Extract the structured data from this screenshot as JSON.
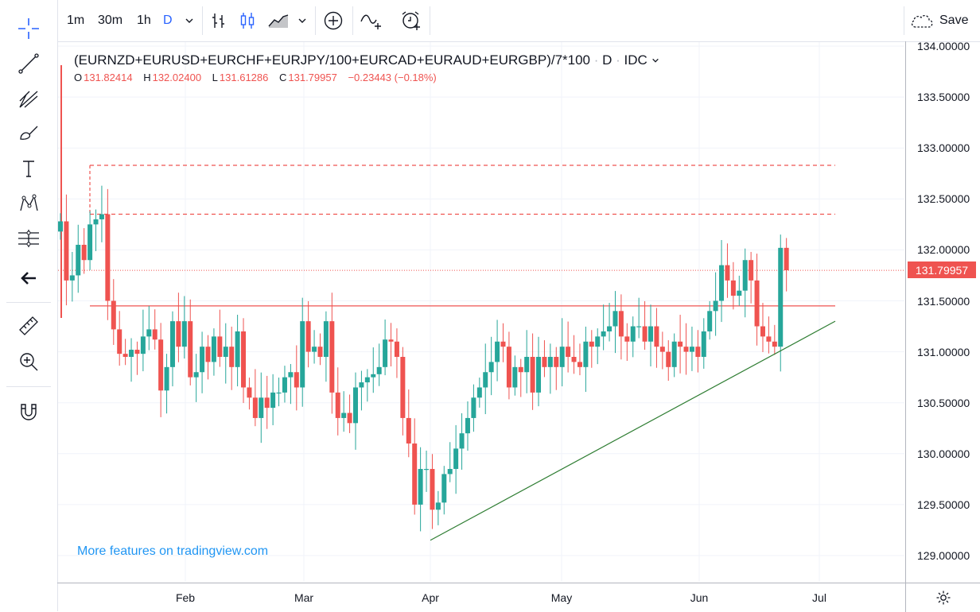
{
  "toolbar": {
    "intervals": [
      "1m",
      "30m",
      "1h",
      "D"
    ],
    "active_interval": "D",
    "save_label": "Save"
  },
  "left_tools": [
    "crosshair-icon",
    "trend-line-icon",
    "fib-icon",
    "brush-icon",
    "text-icon",
    "pattern-icon",
    "measure-icon",
    "back-arrow-icon",
    "ruler-icon",
    "zoom-in-icon",
    "magnet-icon"
  ],
  "legend": {
    "symbol": "(EURNZD+EURUSD+EURCHF+EURJPY/100+EURCAD+EURAUD+EURGBP)/7*100",
    "interval": "D",
    "source": "IDC",
    "open_label": "O",
    "open": "131.82414",
    "high_label": "H",
    "high": "132.02400",
    "low_label": "L",
    "low": "131.61286",
    "close_label": "C",
    "close": "131.79957",
    "change": "−0.23443 (−0.18%)"
  },
  "watermark": "More features on tradingview.com",
  "last_price_label": "131.79957",
  "colors": {
    "up": "#26a69a",
    "down": "#ef5350",
    "trendline": "#2e7d32",
    "level": "#ef5350",
    "accent": "#2962ff"
  },
  "chart_data": {
    "type": "candlestick",
    "ylim": [
      128.75,
      134.1
    ],
    "y_ticks": [
      "129.00000",
      "129.50000",
      "130.00000",
      "130.50000",
      "131.00000",
      "131.50000",
      "132.00000",
      "132.50000",
      "133.00000",
      "133.50000",
      "134.00000"
    ],
    "x_ticks": [
      "Feb",
      "Mar",
      "Apr",
      "May",
      "Jun",
      "Jul"
    ],
    "candles_close": [
      132.28,
      131.7,
      131.75,
      132.05,
      131.9,
      132.25,
      132.3,
      132.35,
      131.5,
      131.22,
      130.98,
      130.95,
      131.02,
      130.98,
      131.15,
      131.22,
      131.12,
      130.62,
      130.85,
      131.3,
      131.05,
      131.3,
      130.75,
      130.8,
      131.05,
      130.9,
      131.15,
      130.95,
      131.05,
      130.85,
      131.2,
      130.65,
      130.55,
      130.35,
      130.55,
      130.45,
      130.6,
      130.6,
      130.75,
      130.8,
      130.65,
      131.3,
      131.0,
      131.05,
      130.95,
      131.3,
      130.6,
      130.35,
      130.4,
      130.3,
      130.65,
      130.7,
      130.75,
      130.78,
      130.85,
      131.12,
      131.1,
      130.95,
      130.35,
      130.1,
      129.5,
      129.85,
      129.85,
      129.45,
      129.52,
      129.8,
      129.85,
      130.05,
      130.2,
      130.35,
      130.55,
      130.65,
      130.8,
      130.9,
      131.1,
      131.05,
      130.65,
      130.85,
      130.8,
      130.95,
      130.6,
      130.95,
      130.85,
      130.95,
      130.85,
      131.05,
      130.95,
      130.9,
      130.85,
      131.1,
      131.05,
      131.15,
      131.2,
      131.25,
      131.4,
      131.15,
      131.1,
      131.25,
      131.25,
      131.1,
      131.25,
      131.05,
      131.0,
      130.85,
      131.1,
      131.05,
      131.0,
      131.05,
      130.95,
      131.2,
      131.4,
      131.5,
      131.85,
      131.7,
      131.55,
      131.6,
      131.9,
      131.7,
      131.25,
      131.15,
      131.1,
      131.05,
      132.02,
      131.8
    ],
    "last_close": 131.79957,
    "horizontal_levels": [
      {
        "value": 132.83,
        "style": "dashed"
      },
      {
        "value": 132.35,
        "style": "dashed"
      },
      {
        "value": 131.45,
        "style": "solid"
      }
    ],
    "trendline": {
      "from_date": "Apr 1",
      "from_value": 129.15,
      "to_date": "Jul 1",
      "to_value": 131.3
    }
  }
}
